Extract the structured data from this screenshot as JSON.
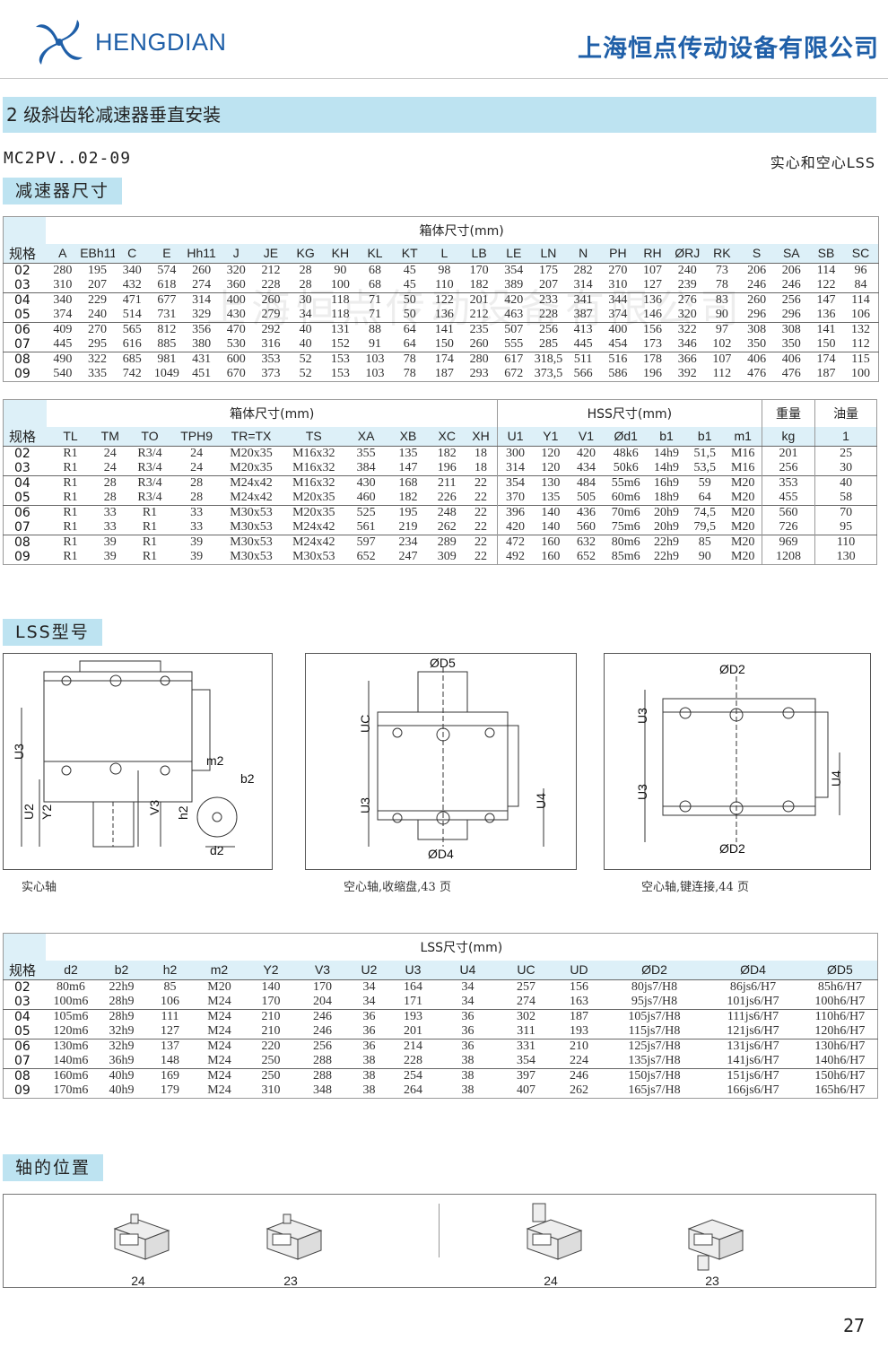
{
  "header": {
    "logo_text": "HENGDIAN",
    "company": "上海恒点传动设备有限公司",
    "brand_color": "#1f5fa8"
  },
  "section_title": "2 级斜齿轮减速器垂直安装",
  "model": "MC2PV..02-09",
  "shaft_type": "实心和空心LSS",
  "watermark": "上海恒点传动设备有限公司",
  "tabs": {
    "reducer_dims": "减速器尺寸",
    "lss_model": "LSS型号",
    "shaft_position": "轴的位置"
  },
  "table1": {
    "title": "箱体尺寸(mm)",
    "columns": [
      "规格",
      "A",
      "EBh11",
      "C",
      "E",
      "Hh11",
      "J",
      "JE",
      "KG",
      "KH",
      "KL",
      "KT",
      "L",
      "LB",
      "LE",
      "LN",
      "N",
      "PH",
      "RH",
      "ØRJ",
      "RK",
      "S",
      "SA",
      "SB",
      "SC"
    ],
    "rows": [
      [
        "02",
        "280",
        "195",
        "340",
        "574",
        "260",
        "320",
        "212",
        "28",
        "90",
        "68",
        "45",
        "98",
        "170",
        "354",
        "175",
        "282",
        "270",
        "107",
        "240",
        "73",
        "206",
        "206",
        "114",
        "96"
      ],
      [
        "03",
        "310",
        "207",
        "432",
        "618",
        "274",
        "360",
        "228",
        "28",
        "100",
        "68",
        "45",
        "110",
        "182",
        "389",
        "207",
        "314",
        "310",
        "127",
        "239",
        "78",
        "246",
        "246",
        "122",
        "84"
      ],
      [
        "04",
        "340",
        "229",
        "471",
        "677",
        "314",
        "400",
        "260",
        "30",
        "118",
        "71",
        "50",
        "122",
        "201",
        "420",
        "233",
        "341",
        "344",
        "136",
        "276",
        "83",
        "260",
        "256",
        "147",
        "114"
      ],
      [
        "05",
        "374",
        "240",
        "514",
        "731",
        "329",
        "430",
        "279",
        "34",
        "118",
        "71",
        "50",
        "136",
        "212",
        "463",
        "228",
        "387",
        "374",
        "146",
        "320",
        "90",
        "296",
        "296",
        "136",
        "106"
      ],
      [
        "06",
        "409",
        "270",
        "565",
        "812",
        "356",
        "470",
        "292",
        "40",
        "131",
        "88",
        "64",
        "141",
        "235",
        "507",
        "256",
        "413",
        "400",
        "156",
        "322",
        "97",
        "308",
        "308",
        "141",
        "132"
      ],
      [
        "07",
        "445",
        "295",
        "616",
        "885",
        "380",
        "530",
        "316",
        "40",
        "152",
        "91",
        "64",
        "150",
        "260",
        "555",
        "285",
        "445",
        "454",
        "173",
        "346",
        "102",
        "350",
        "350",
        "150",
        "112"
      ],
      [
        "08",
        "490",
        "322",
        "685",
        "981",
        "431",
        "600",
        "353",
        "52",
        "153",
        "103",
        "78",
        "174",
        "280",
        "617",
        "318,5",
        "511",
        "516",
        "178",
        "366",
        "107",
        "406",
        "406",
        "174",
        "115"
      ],
      [
        "09",
        "540",
        "335",
        "742",
        "1049",
        "451",
        "670",
        "373",
        "52",
        "153",
        "103",
        "78",
        "187",
        "293",
        "672",
        "373,5",
        "566",
        "586",
        "196",
        "392",
        "112",
        "476",
        "476",
        "187",
        "100"
      ]
    ]
  },
  "table2": {
    "groups": [
      "箱体尺寸(mm)",
      "HSS尺寸(mm)",
      "重量",
      "油量"
    ],
    "columns": [
      "规格",
      "TL",
      "TM",
      "TO",
      "TPH9",
      "TR=TX",
      "TS",
      "XA",
      "XB",
      "XC",
      "XH",
      "U1",
      "Y1",
      "V1",
      "Ød1",
      "b1",
      "b1",
      "m1",
      "kg",
      "1"
    ],
    "rows": [
      [
        "02",
        "R1",
        "24",
        "R3/4",
        "24",
        "M20x35",
        "M16x32",
        "355",
        "135",
        "182",
        "18",
        "300",
        "120",
        "420",
        "48k6",
        "14h9",
        "51,5",
        "M16",
        "201",
        "25"
      ],
      [
        "03",
        "R1",
        "24",
        "R3/4",
        "24",
        "M20x35",
        "M16x32",
        "384",
        "147",
        "196",
        "18",
        "314",
        "120",
        "434",
        "50k6",
        "14h9",
        "53,5",
        "M16",
        "256",
        "30"
      ],
      [
        "04",
        "R1",
        "28",
        "R3/4",
        "28",
        "M24x42",
        "M16x32",
        "430",
        "168",
        "211",
        "22",
        "354",
        "130",
        "484",
        "55m6",
        "16h9",
        "59",
        "M20",
        "353",
        "40"
      ],
      [
        "05",
        "R1",
        "28",
        "R3/4",
        "28",
        "M24x42",
        "M20x35",
        "460",
        "182",
        "226",
        "22",
        "370",
        "135",
        "505",
        "60m6",
        "18h9",
        "64",
        "M20",
        "455",
        "58"
      ],
      [
        "06",
        "R1",
        "33",
        "R1",
        "33",
        "M30x53",
        "M20x35",
        "525",
        "195",
        "248",
        "22",
        "396",
        "140",
        "436",
        "70m6",
        "20h9",
        "74,5",
        "M20",
        "560",
        "70"
      ],
      [
        "07",
        "R1",
        "33",
        "R1",
        "33",
        "M30x53",
        "M24x42",
        "561",
        "219",
        "262",
        "22",
        "420",
        "140",
        "560",
        "75m6",
        "20h9",
        "79,5",
        "M20",
        "726",
        "95"
      ],
      [
        "08",
        "R1",
        "39",
        "R1",
        "39",
        "M30x53",
        "M24x42",
        "597",
        "234",
        "289",
        "22",
        "472",
        "160",
        "632",
        "80m6",
        "22h9",
        "85",
        "M20",
        "969",
        "110"
      ],
      [
        "09",
        "R1",
        "39",
        "R1",
        "39",
        "M30x53",
        "M30x53",
        "652",
        "247",
        "309",
        "22",
        "492",
        "160",
        "652",
        "85m6",
        "22h9",
        "90",
        "M20",
        "1208",
        "130"
      ]
    ]
  },
  "drawings": [
    {
      "caption": "实心轴",
      "labels": [
        "U3",
        "U2",
        "Y2",
        "V3",
        "h2",
        "m2",
        "b2",
        "d2"
      ]
    },
    {
      "caption": "空心轴,收缩盘,43 页",
      "labels": [
        "ØD5",
        "UC",
        "U3",
        "U4",
        "ØD4"
      ]
    },
    {
      "caption": "空心轴,键连接,44 页",
      "labels": [
        "ØD2",
        "U3",
        "U3",
        "U4",
        "ØD2"
      ]
    }
  ],
  "table3": {
    "title": "LSS尺寸(mm)",
    "columns": [
      "规格",
      "d2",
      "b2",
      "h2",
      "m2",
      "Y2",
      "V3",
      "U2",
      "U3",
      "U4",
      "UC",
      "UD",
      "ØD2",
      "ØD4",
      "ØD5"
    ],
    "rows": [
      [
        "02",
        "80m6",
        "22h9",
        "85",
        "M20",
        "140",
        "170",
        "34",
        "164",
        "34",
        "257",
        "156",
        "80js7/H8",
        "86js6/H7",
        "85h6/H7"
      ],
      [
        "03",
        "100m6",
        "28h9",
        "106",
        "M24",
        "170",
        "204",
        "34",
        "171",
        "34",
        "274",
        "163",
        "95js7/H8",
        "101js6/H7",
        "100h6/H7"
      ],
      [
        "04",
        "105m6",
        "28h9",
        "111",
        "M24",
        "210",
        "246",
        "36",
        "193",
        "36",
        "302",
        "187",
        "105js7/H8",
        "111js6/H7",
        "110h6/H7"
      ],
      [
        "05",
        "120m6",
        "32h9",
        "127",
        "M24",
        "210",
        "246",
        "36",
        "201",
        "36",
        "311",
        "193",
        "115js7/H8",
        "121js6/H7",
        "120h6/H7"
      ],
      [
        "06",
        "130m6",
        "32h9",
        "137",
        "M24",
        "220",
        "256",
        "36",
        "214",
        "36",
        "331",
        "210",
        "125js7/H8",
        "131js6/H7",
        "130h6/H7"
      ],
      [
        "07",
        "140m6",
        "36h9",
        "148",
        "M24",
        "250",
        "288",
        "38",
        "228",
        "38",
        "354",
        "224",
        "135js7/H8",
        "141js6/H7",
        "140h6/H7"
      ],
      [
        "08",
        "160m6",
        "40h9",
        "169",
        "M24",
        "250",
        "288",
        "38",
        "254",
        "38",
        "397",
        "246",
        "150js7/H8",
        "151js6/H7",
        "150h6/H7"
      ],
      [
        "09",
        "170m6",
        "40h9",
        "179",
        "M24",
        "310",
        "348",
        "38",
        "264",
        "38",
        "407",
        "262",
        "165js7/H8",
        "166js6/H7",
        "165h6/H7"
      ]
    ]
  },
  "shaft_positions": [
    "24",
    "23",
    "24",
    "23"
  ],
  "page_number": "27"
}
